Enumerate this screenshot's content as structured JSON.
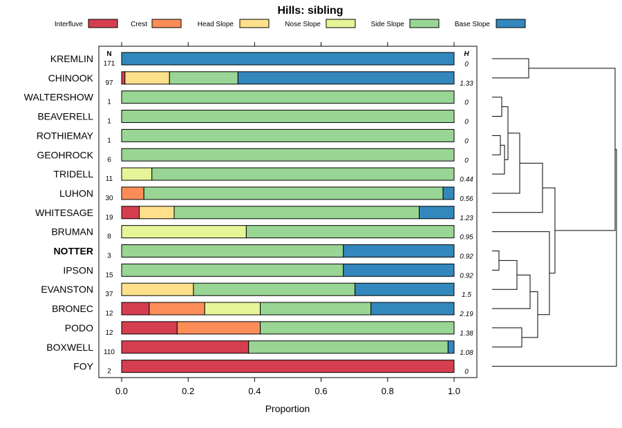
{
  "chart_data": {
    "type": "bar",
    "orientation": "horizontal",
    "stacked": true,
    "title": "Hills: sibling",
    "xlabel": "Proportion",
    "ylabel": "",
    "xlim": [
      0,
      1
    ],
    "x_ticks": [
      "0.0",
      "0.2",
      "0.4",
      "0.6",
      "0.8",
      "1.0"
    ],
    "legend_position": "top",
    "n_header": "N",
    "h_header": "H",
    "highlight_category": "NOTTER",
    "series": [
      {
        "name": "Interfluve",
        "color": "#D53E4F"
      },
      {
        "name": "Crest",
        "color": "#FC8D59"
      },
      {
        "name": "Head Slope",
        "color": "#FEE08B"
      },
      {
        "name": "Nose Slope",
        "color": "#E6F598"
      },
      {
        "name": "Side Slope",
        "color": "#99D594"
      },
      {
        "name": "Base Slope",
        "color": "#3288BD"
      }
    ],
    "categories": [
      "KREMLIN",
      "CHINOOK",
      "WALTERSHOW",
      "BEAVERELL",
      "ROTHIEMAY",
      "GEOHROCK",
      "TRIDELL",
      "LUHON",
      "WHITESAGE",
      "BRUMAN",
      "NOTTER",
      "IPSON",
      "EVANSTON",
      "BRONEC",
      "PODO",
      "BOXWELL",
      "FOY"
    ],
    "n": [
      "171",
      "97",
      "1",
      "1",
      "1",
      "6",
      "11",
      "30",
      "19",
      "8",
      "3",
      "15",
      "37",
      "12",
      "12",
      "110",
      "2"
    ],
    "h": [
      "0",
      "1.33",
      "0",
      "0",
      "0",
      "0",
      "0.44",
      "0.56",
      "1.23",
      "0.95",
      "0.92",
      "0.92",
      "1.5",
      "2.19",
      "1.38",
      "1.08",
      "0"
    ],
    "values": [
      [
        0,
        0,
        0,
        0,
        0,
        1
      ],
      [
        0.01,
        0,
        0.134,
        0,
        0.206,
        0.65
      ],
      [
        0,
        0,
        0,
        0,
        1,
        0
      ],
      [
        0,
        0,
        0,
        0,
        1,
        0
      ],
      [
        0,
        0,
        0,
        0,
        1,
        0
      ],
      [
        0,
        0,
        0,
        0,
        1,
        0
      ],
      [
        0,
        0,
        0,
        0.091,
        0.909,
        0
      ],
      [
        0,
        0.067,
        0,
        0,
        0.9,
        0.033
      ],
      [
        0.053,
        0,
        0.105,
        0,
        0.737,
        0.105
      ],
      [
        0,
        0,
        0,
        0.375,
        0.625,
        0
      ],
      [
        0,
        0,
        0,
        0,
        0.667,
        0.333
      ],
      [
        0,
        0,
        0,
        0,
        0.667,
        0.333
      ],
      [
        0,
        0,
        0.216,
        0,
        0.486,
        0.298
      ],
      [
        0.083,
        0.167,
        0,
        0.167,
        0.333,
        0.25
      ],
      [
        0.167,
        0.25,
        0,
        0,
        0.583,
        0
      ],
      [
        0.382,
        0,
        0,
        0,
        0.6,
        0.018
      ],
      [
        1,
        0,
        0,
        0,
        0,
        0
      ]
    ]
  }
}
